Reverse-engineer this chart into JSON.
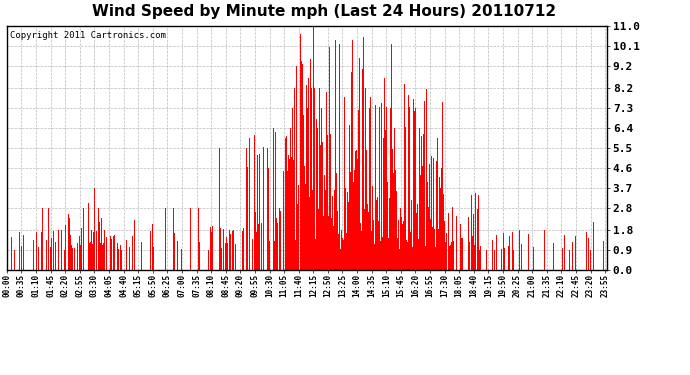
{
  "title": "Wind Speed by Minute mph (Last 24 Hours) 20110712",
  "copyright_text": "Copyright 2011 Cartronics.com",
  "bar_color": "#ff0000",
  "background_color": "#ffffff",
  "plot_bg_color": "#ffffff",
  "grid_color": "#bbbbbb",
  "yticks": [
    0.0,
    0.9,
    1.8,
    2.8,
    3.7,
    4.6,
    5.5,
    6.4,
    7.3,
    8.2,
    9.2,
    10.1,
    11.0
  ],
  "ymax": 11.0,
  "ymin": 0.0,
  "title_fontsize": 11,
  "copyright_fontsize": 6.5,
  "ytick_fontsize": 8,
  "xtick_fontsize": 5.5,
  "xtick_interval": 35,
  "n_minutes": 1440
}
